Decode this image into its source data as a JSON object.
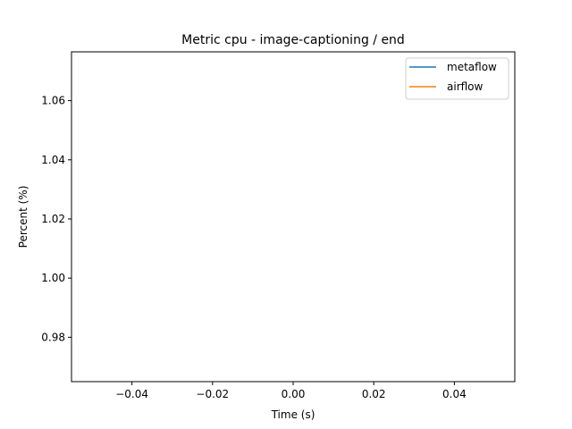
{
  "chart_data": {
    "type": "line",
    "title": "Metric cpu - image-captioning / end",
    "xlabel": "Time (s)",
    "ylabel": "Percent (%)",
    "xlim": [
      -0.055,
      0.055
    ],
    "ylim": [
      0.965,
      1.0765
    ],
    "xticks": [
      -0.04,
      -0.02,
      0.0,
      0.02,
      0.04
    ],
    "xtick_labels": [
      "−0.04",
      "−0.02",
      "0.00",
      "0.02",
      "0.04"
    ],
    "yticks": [
      0.98,
      1.0,
      1.02,
      1.04,
      1.06
    ],
    "ytick_labels": [
      "0.98",
      "1.00",
      "1.02",
      "1.04",
      "1.06"
    ],
    "legend_position": "top-right",
    "grid": false,
    "series": [
      {
        "name": "metaflow",
        "color": "#1f77b4",
        "x": [
          0.0
        ],
        "y": [
          1.0
        ]
      },
      {
        "name": "airflow",
        "color": "#ff7f0e",
        "x": [
          0.0
        ],
        "y": [
          1.0
        ]
      }
    ]
  }
}
